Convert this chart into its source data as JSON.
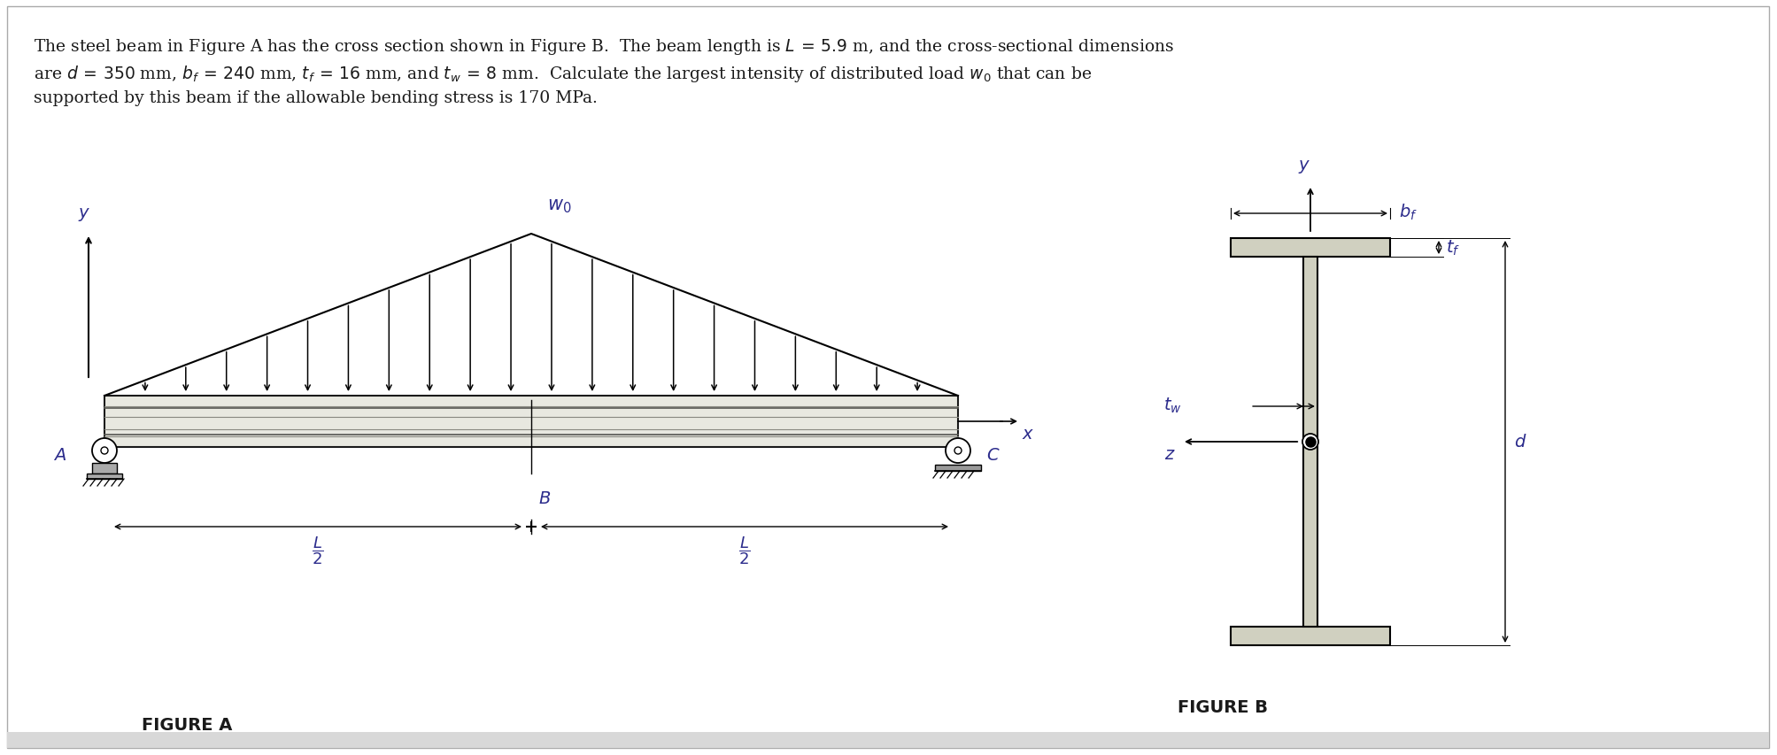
{
  "background_color": "#ffffff",
  "outer_bg": "#f0f0f0",
  "text_color": "#1a1a1a",
  "italic_color": "#2c2c8c",
  "beam_fill_light": "#e8e8e0",
  "beam_fill_dark": "#c8c8b8",
  "beam_edge": "#1a1a1a",
  "i_beam_fill": "#d0d0c0",
  "i_beam_edge": "#1a1a1a",
  "fig_a_label": "FIGURE A",
  "fig_b_label": "FIGURE B"
}
